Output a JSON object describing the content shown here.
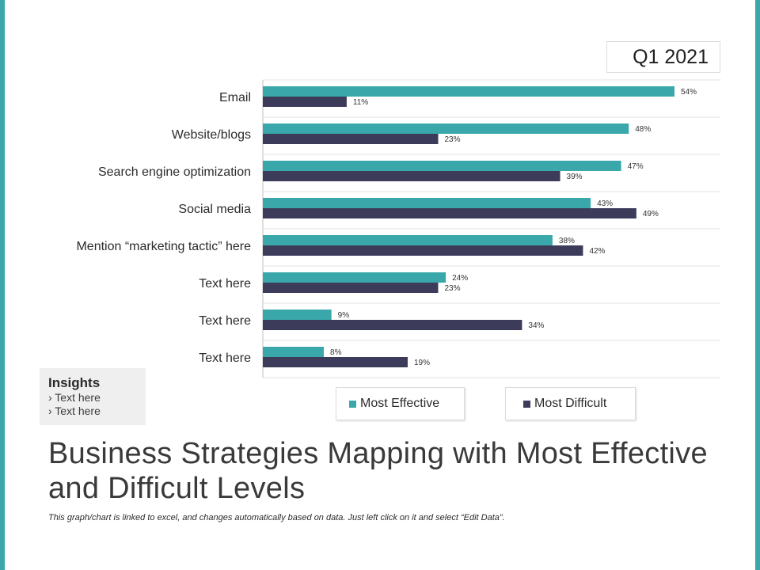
{
  "period": "Q1 2021",
  "title": "Business Strategies Mapping with Most Effective and Difficult Levels",
  "note": "This graph/chart is linked to excel, and changes automatically based on data. Just left click on it and select “Edit Data”.",
  "insights": {
    "title": "Insights",
    "items": [
      "› Text here",
      "› Text here"
    ]
  },
  "colors": {
    "effective": "#3aa8ab",
    "difficult": "#3d3b5a",
    "grid": "#e3e3e3"
  },
  "chart_data": {
    "type": "bar",
    "orientation": "horizontal",
    "categories": [
      "Email",
      "Website/blogs",
      "Search engine optimization",
      "Social media",
      "Mention “marketing tactic” here",
      "Text here",
      "Text here",
      "Text here"
    ],
    "series": [
      {
        "name": "Most Effective",
        "values": [
          54,
          48,
          47,
          43,
          38,
          24,
          9,
          8
        ],
        "labels": [
          "54%",
          "48%",
          "47%",
          "43%",
          "38%",
          "24%",
          "9%",
          "8%"
        ]
      },
      {
        "name": "Most Difficult",
        "values": [
          11,
          23,
          39,
          49,
          42,
          23,
          34,
          19
        ],
        "labels": [
          "11%",
          "23%",
          "39%",
          "49%",
          "42%",
          "23%",
          "34%",
          "19%"
        ]
      }
    ],
    "xlim": [
      0,
      60
    ],
    "unit": "%",
    "legend": "bottom"
  }
}
